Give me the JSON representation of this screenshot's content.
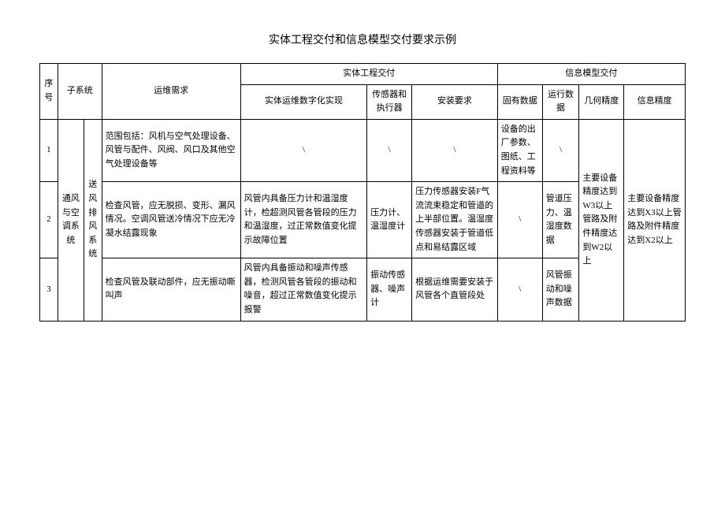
{
  "title": "实体工程交付和信息模型交付要求示例",
  "headers": {
    "seq": "序号",
    "subsystem": "子系统",
    "op_req": "运维需求",
    "phys_group": "实体工程交付",
    "info_group": "信息模型交付",
    "phys_digital": "实体运维数字化实现",
    "sensor": "传感器和执行器",
    "install": "安装要求",
    "inherent": "固有数据",
    "run": "运行数据",
    "geo": "几何精度",
    "info": "信息精度"
  },
  "subsystem_l1": "通风与空调系统",
  "subsystem_l2": "送风排风系统",
  "rows": [
    {
      "seq": "1",
      "op_req": "范围包括：风机与空气处理设备、风管与配件、风阀、风口及其他空气处理设备等",
      "phys_digital": "\\",
      "sensor": "\\",
      "install": "\\",
      "inherent": "设备的出厂参数、图纸、工程资料等",
      "run": "\\"
    },
    {
      "seq": "2",
      "op_req": "检查风管，应无脱损、变形、漏风情况。空调风管送冷情况下应无冷凝水结露现象",
      "phys_digital": "风管内具备压力计和温湿度计，检超测风管各管段的压力和温湿度，过正常数值变化提示故障位置",
      "sensor": "压力计、温湿度计",
      "install": "压力传感器安装F气流流束稳定和管道的上半部位置。温湿度传感器安装于管道低点和易结露区域",
      "inherent": "\\",
      "run": "管道压力、温湿度数据"
    },
    {
      "seq": "3",
      "op_req": "检查风管及联动部件，应无振动嘶叫声",
      "phys_digital": "风管内具备振动和噪声传感器，检测风管各管段的振动和噪音，超过正常数值变化提示报警",
      "sensor": "振动传感器、噪声计",
      "install": "根据运维需要安装于风管各个直管段处",
      "inherent": "\\",
      "run": "风管振动和噪声数据"
    }
  ],
  "merged": {
    "geo": "主要设备精度达到W3以上管路及附件精度达到W2以上",
    "info": "主要设备精度达到X3以上管路及附件精度达到X2以上"
  }
}
